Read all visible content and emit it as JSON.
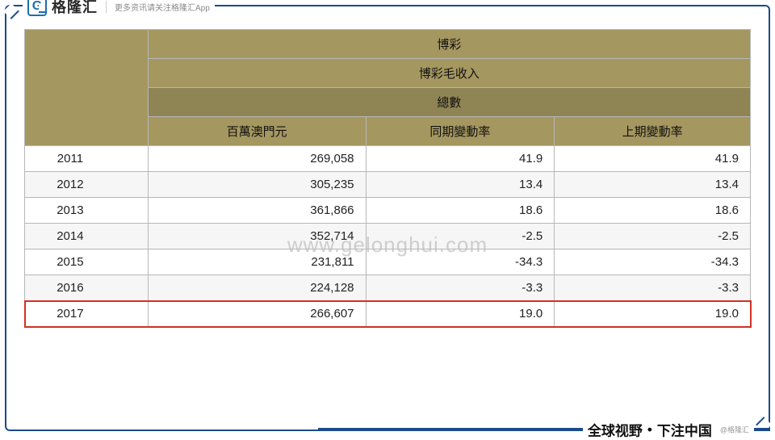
{
  "brand": {
    "logo_letter": "G",
    "name": "格隆汇",
    "sub": "更多资讯请关注格隆汇App"
  },
  "table": {
    "header": {
      "top": "博彩",
      "sub": "博彩毛收入",
      "total": "總數",
      "col_year_blank": "",
      "col_amount": "百萬澳門元",
      "col_yoy": "同期變動率",
      "col_qoq": "上期變動率"
    },
    "rows": [
      {
        "year": "2011",
        "amount": "269,058",
        "yoy": "41.9",
        "qoq": "41.9"
      },
      {
        "year": "2012",
        "amount": "305,235",
        "yoy": "13.4",
        "qoq": "13.4"
      },
      {
        "year": "2013",
        "amount": "361,866",
        "yoy": "18.6",
        "qoq": "18.6"
      },
      {
        "year": "2014",
        "amount": "352,714",
        "yoy": "-2.5",
        "qoq": "-2.5"
      },
      {
        "year": "2015",
        "amount": "231,811",
        "yoy": "-34.3",
        "qoq": "-34.3"
      },
      {
        "year": "2016",
        "amount": "224,128",
        "yoy": "-3.3",
        "qoq": "-3.3"
      },
      {
        "year": "2017",
        "amount": "266,607",
        "yoy": "19.0",
        "qoq": "19.0"
      }
    ],
    "highlight_row_index": 6,
    "col_widths": [
      "17%",
      "30%",
      "26%",
      "27%"
    ]
  },
  "watermark": {
    "logo_text": "格隆汇",
    "url": "www.gelonghui.com"
  },
  "footer": {
    "slogan_left": "全球视野",
    "slogan_right": "下注中国",
    "credit": "@格隆汇"
  },
  "colors": {
    "frame": "#1b4a8a",
    "header_olive": "#a59760",
    "header_dark": "#8f8454",
    "row_alt": "#f6f6f6",
    "highlight_border": "#d33024",
    "watermark": "#bdbdbd"
  }
}
